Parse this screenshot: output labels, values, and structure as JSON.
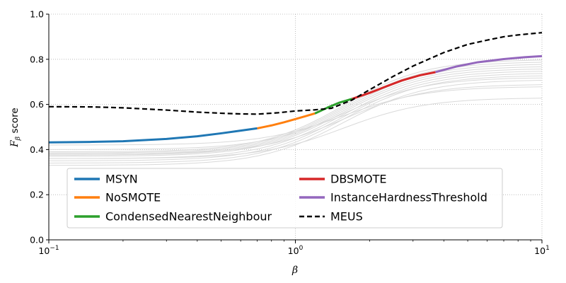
{
  "chart_data": {
    "type": "line",
    "xscale": "log",
    "xlim": [
      0.1,
      10
    ],
    "ylim": [
      0.0,
      1.0
    ],
    "xlabel": "β",
    "ylabel_main": "F",
    "ylabel_sub": "β",
    "ylabel_rest": " score",
    "xticks": [
      {
        "value": 0.1,
        "base": "10",
        "exp": "−1"
      },
      {
        "value": 1,
        "base": "10",
        "exp": "0"
      },
      {
        "value": 10,
        "base": "10",
        "exp": "1"
      }
    ],
    "yticks": [
      "0.0",
      "0.2",
      "0.4",
      "0.6",
      "0.8",
      "1.0"
    ],
    "grid": {
      "x_major": true,
      "y": true,
      "style": "dotted"
    },
    "legend": {
      "placement": "lower-center",
      "columns": 2
    },
    "gray_curves": [
      {
        "start": 0.39,
        "end": 0.8
      },
      {
        "start": 0.385,
        "end": 0.79
      },
      {
        "start": 0.38,
        "end": 0.78
      },
      {
        "start": 0.375,
        "end": 0.77
      },
      {
        "start": 0.37,
        "end": 0.76
      },
      {
        "start": 0.36,
        "end": 0.75
      },
      {
        "start": 0.35,
        "end": 0.74
      },
      {
        "start": 0.34,
        "end": 0.73
      },
      {
        "start": 0.4,
        "end": 0.72
      },
      {
        "start": 0.33,
        "end": 0.71
      },
      {
        "start": 0.38,
        "end": 0.69
      },
      {
        "start": 0.42,
        "end": 0.68
      },
      {
        "start": 0.36,
        "end": 0.63
      }
    ],
    "best_curve": {
      "segments": [
        {
          "name": "MSYN",
          "color": "#1f77b4",
          "x": [
            0.1,
            0.15,
            0.2,
            0.3,
            0.4,
            0.5,
            0.6,
            0.7
          ],
          "y": [
            0.432,
            0.434,
            0.437,
            0.447,
            0.459,
            0.472,
            0.484,
            0.494
          ]
        },
        {
          "name": "NoSMOTE",
          "color": "#ff7f0e",
          "x": [
            0.7,
            0.8,
            0.9,
            1.0,
            1.1,
            1.2
          ],
          "y": [
            0.494,
            0.507,
            0.521,
            0.535,
            0.548,
            0.56
          ]
        },
        {
          "name": "CondensedNearestNeighbour",
          "color": "#2ca02c",
          "x": [
            1.2,
            1.35,
            1.5,
            1.7
          ],
          "y": [
            0.56,
            0.586,
            0.607,
            0.625
          ]
        },
        {
          "name": "DBSMOTE",
          "color": "#d62728",
          "x": [
            1.7,
            2.0,
            2.3,
            2.7,
            3.2,
            3.7
          ],
          "y": [
            0.625,
            0.651,
            0.677,
            0.706,
            0.729,
            0.743
          ]
        },
        {
          "name": "InstanceHardnessThreshold",
          "color": "#9467bd",
          "x": [
            3.7,
            4.5,
            5.5,
            7.0,
            8.5,
            10
          ],
          "y": [
            0.743,
            0.768,
            0.787,
            0.801,
            0.809,
            0.814
          ]
        }
      ]
    },
    "series": [
      {
        "name": "MSYN",
        "color": "#1f77b4",
        "style": "solid"
      },
      {
        "name": "NoSMOTE",
        "color": "#ff7f0e",
        "style": "solid"
      },
      {
        "name": "CondensedNearestNeighbour",
        "color": "#2ca02c",
        "style": "solid"
      },
      {
        "name": "DBSMOTE",
        "color": "#d62728",
        "style": "solid"
      },
      {
        "name": "InstanceHardnessThreshold",
        "color": "#9467bd",
        "style": "solid"
      },
      {
        "name": "MEUS",
        "color": "#000000",
        "style": "dashed",
        "x": [
          0.1,
          0.15,
          0.2,
          0.3,
          0.4,
          0.5,
          0.6,
          0.7,
          0.85,
          1.0,
          1.2,
          1.4,
          1.7,
          2.0,
          2.5,
          3.0,
          4.0,
          5.0,
          6.0,
          7.0,
          8.0,
          10
        ],
        "y": [
          0.59,
          0.589,
          0.585,
          0.575,
          0.566,
          0.561,
          0.558,
          0.557,
          0.563,
          0.571,
          0.576,
          0.583,
          0.62,
          0.665,
          0.725,
          0.77,
          0.83,
          0.866,
          0.885,
          0.9,
          0.908,
          0.918
        ]
      }
    ]
  }
}
